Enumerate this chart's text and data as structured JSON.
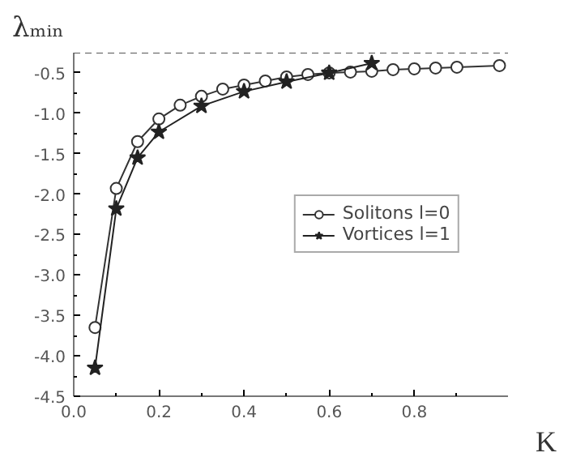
{
  "chart_data": {
    "type": "line",
    "xlabel": "K",
    "ylabel": "λₘᵢₙ",
    "xlim": [
      0,
      1.02
    ],
    "ylim": [
      -4.5,
      -0.25
    ],
    "xticks": [
      {
        "value": 0,
        "label": "0.0"
      },
      0.2,
      0.4,
      0.6,
      0.8
    ],
    "yticks": [
      {
        "value": -0.5,
        "label": "-0.5"
      },
      {
        "value": -1.0,
        "label": "-1.0"
      },
      {
        "value": -1.5,
        "label": "-1.5"
      },
      {
        "value": -2.0,
        "label": "-2.0"
      },
      {
        "value": -2.5,
        "label": "-2.5"
      },
      {
        "value": -3.0,
        "label": "-3.0"
      },
      {
        "value": -3.5,
        "label": "-3.5"
      },
      {
        "value": -4.0,
        "label": "-4.0"
      },
      {
        "value": -4.5,
        "label": "-4.5"
      }
    ],
    "grid": false,
    "legend": "right",
    "line_style": "solid",
    "ref_lines": [
      {
        "axis": "y",
        "value": -0.25,
        "label": null,
        "line_style": "dashed",
        "color": "#555555"
      }
    ],
    "series": [
      {
        "name": "Solitons l=0",
        "color": "#333333",
        "marker": "circle",
        "x": [
          0.05,
          0.1,
          0.15,
          0.2,
          0.25,
          0.3,
          0.35,
          0.4,
          0.45,
          0.5,
          0.55,
          0.6,
          0.65,
          0.7,
          0.75,
          0.8,
          0.85,
          0.9,
          1.0
        ],
        "values": [
          -3.65,
          -1.93,
          -1.35,
          -1.07,
          -0.9,
          -0.79,
          -0.7,
          -0.65,
          -0.6,
          -0.55,
          -0.52,
          -0.5,
          -0.49,
          -0.48,
          -0.46,
          -0.45,
          -0.44,
          -0.43,
          -0.41
        ]
      },
      {
        "name": "Vortices l=1",
        "color": "#222222",
        "marker": "star",
        "x": [
          0.05,
          0.1,
          0.15,
          0.2,
          0.3,
          0.4,
          0.5,
          0.6,
          0.7
        ],
        "values": [
          -4.15,
          -2.18,
          -1.55,
          -1.23,
          -0.91,
          -0.73,
          -0.61,
          -0.5,
          -0.38
        ]
      }
    ]
  }
}
